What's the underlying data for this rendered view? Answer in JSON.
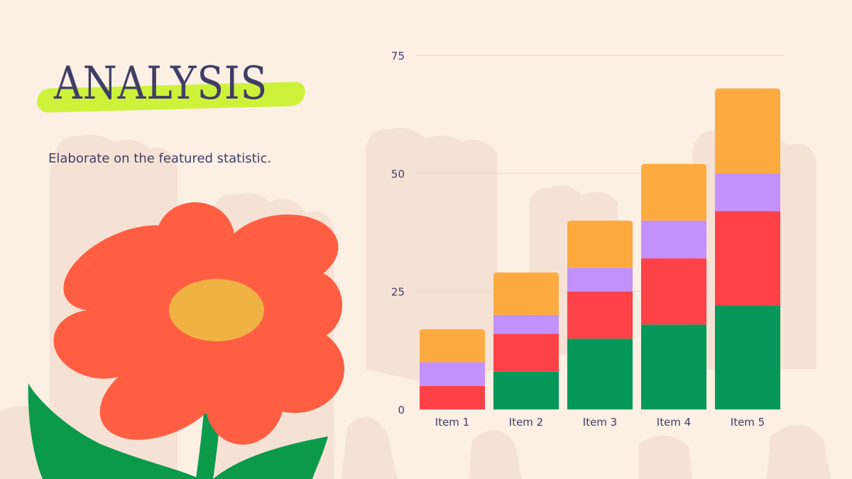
{
  "page": {
    "title": "ANALYSIS",
    "subtitle": "Elaborate on the featured statistic."
  },
  "colors": {
    "background": "#fcefe4",
    "decor_shapes": "#f6e2d5",
    "title_text": "#3f3e66",
    "title_highlight": "#cdf23a",
    "flower_petals": "#ff5e42",
    "flower_center": "#f0b343",
    "flower_leaves": "#0b9a4c"
  },
  "chart_data": {
    "type": "bar",
    "stacked": true,
    "categories": [
      "Item 1",
      "Item 2",
      "Item 3",
      "Item 4",
      "Item 5"
    ],
    "series": [
      {
        "values": [
          0,
          8,
          15,
          18,
          22
        ],
        "color": "#06985a"
      },
      {
        "values": [
          5,
          8,
          10,
          14,
          20
        ],
        "color": "#ff4148"
      },
      {
        "values": [
          5,
          4,
          5,
          8,
          8
        ],
        "color": "#c391fb"
      },
      {
        "values": [
          7,
          9,
          10,
          12,
          18
        ],
        "color": "#fdab40"
      }
    ],
    "ylim": [
      0,
      75
    ],
    "yticks": [
      0,
      25,
      50,
      75
    ],
    "grid": true,
    "legend": "none",
    "title": "",
    "xlabel": "",
    "ylabel": ""
  }
}
